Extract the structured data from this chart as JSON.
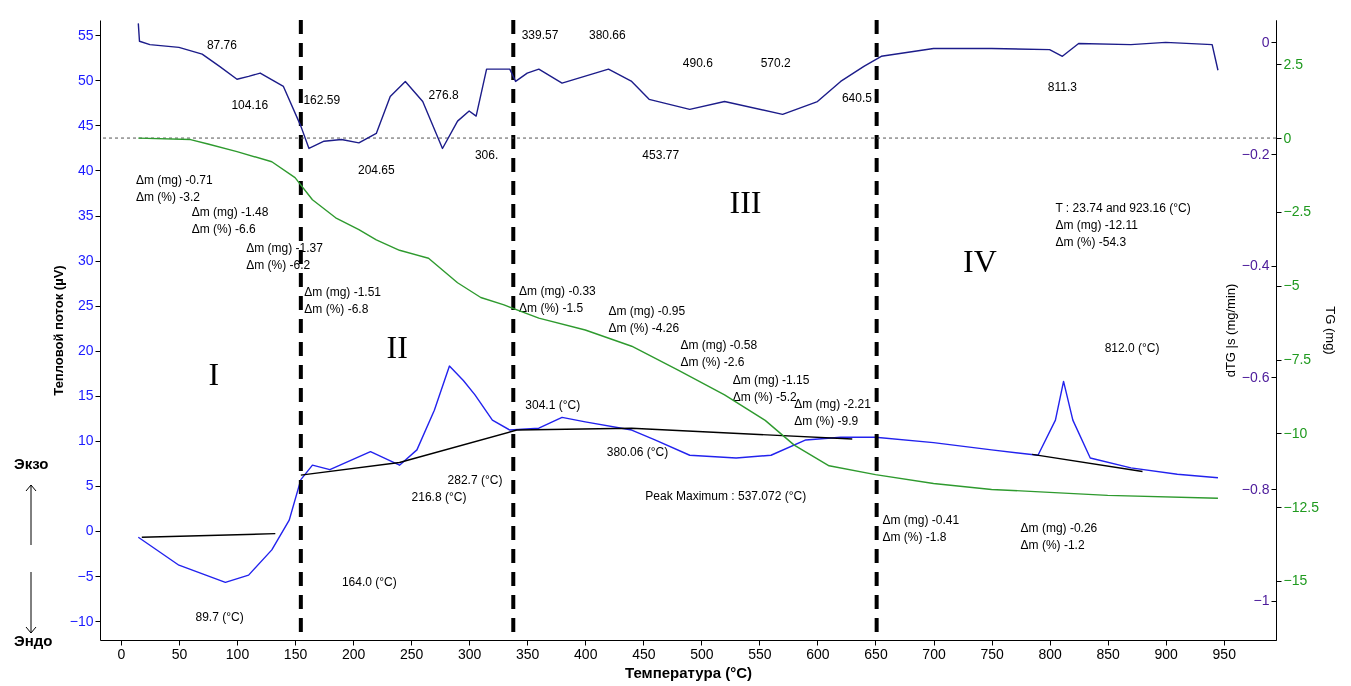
{
  "chart_data": {
    "type": "line",
    "xlabel": "Температура   (°C)",
    "ylabel": "Тепловой поток  (µV)",
    "y2label": "dTG |s (mg/min)",
    "y3label": "TG (mg)",
    "xlim": [
      -18,
      995
    ],
    "xticks": [
      0,
      50,
      100,
      150,
      200,
      250,
      300,
      350,
      400,
      450,
      500,
      550,
      600,
      650,
      700,
      750,
      800,
      850,
      900,
      950
    ],
    "ylim": [
      -12.1,
      56.7
    ],
    "yticks": [
      -10,
      -5,
      0,
      5,
      10,
      15,
      20,
      25,
      30,
      35,
      40,
      45,
      50,
      55
    ],
    "y2lim": [
      -1.07,
      0.04
    ],
    "y2ticks": [
      0,
      -0.2,
      -0.4,
      -0.6,
      -0.8,
      -1
    ],
    "y3lim": [
      -17,
      4
    ],
    "y3ticks": [
      2.5,
      0,
      -2.5,
      -5,
      -7.5,
      -10,
      -12.5,
      -15
    ],
    "series": [
      {
        "color": "#2222ee",
        "x": [
          15,
          50,
          90,
          110,
          130,
          145,
          155,
          165,
          180,
          215,
          240,
          255,
          270,
          283,
          295,
          305,
          320,
          335,
          360,
          380,
          400,
          440,
          460,
          490,
          530,
          560,
          590,
          620,
          650,
          700,
          750,
          790,
          805,
          812,
          820,
          835,
          870,
          910,
          945
        ],
        "values": [
          -0.7,
          -3.8,
          -5.7,
          -4.9,
          -2.1,
          1.2,
          5.7,
          7.3,
          6.8,
          8.8,
          7.3,
          9,
          13.4,
          18.3,
          16.7,
          15.1,
          12.3,
          11.2,
          11.4,
          12.6,
          12.1,
          11.2,
          10.1,
          8.4,
          8.1,
          8.4,
          10.1,
          10.4,
          10.4,
          9.8,
          9,
          8.4,
          12.3,
          16.6,
          12.3,
          8.1,
          7,
          6.3,
          5.9
        ]
      },
      {
        "color": "#1c1c8a",
        "axis": "y2",
        "x": [
          15,
          16,
          25,
          50,
          70,
          85,
          100,
          110,
          120,
          140,
          155,
          162,
          175,
          190,
          205,
          220,
          232,
          245,
          260,
          277,
          290,
          300,
          306,
          315,
          335,
          340,
          350,
          360,
          380,
          420,
          440,
          455,
          490,
          520,
          570,
          600,
          620,
          640,
          655,
          700,
          750,
          800,
          811,
          825,
          870,
          900,
          940,
          945
        ],
        "values": [
          0.034,
          0.002,
          -0.004,
          -0.009,
          -0.021,
          -0.043,
          -0.066,
          -0.061,
          -0.055,
          -0.079,
          -0.15,
          -0.19,
          -0.177,
          -0.174,
          -0.18,
          -0.163,
          -0.097,
          -0.07,
          -0.106,
          -0.19,
          -0.141,
          -0.123,
          -0.132,
          -0.048,
          -0.048,
          -0.07,
          -0.055,
          -0.048,
          -0.073,
          -0.048,
          -0.07,
          -0.102,
          -0.12,
          -0.106,
          -0.129,
          -0.106,
          -0.07,
          -0.043,
          -0.025,
          -0.011,
          -0.011,
          -0.013,
          -0.025,
          -0.002,
          -0.004,
          0,
          -0.004,
          -0.05
        ]
      },
      {
        "color": "#2e9a2e",
        "axis": "y3",
        "x": [
          15,
          60,
          75,
          100,
          130,
          150,
          165,
          185,
          205,
          220,
          240,
          265,
          290,
          310,
          330,
          360,
          400,
          440,
          480,
          520,
          555,
          580,
          610,
          650,
          700,
          750,
          800,
          850,
          945
        ],
        "values": [
          0,
          -0.05,
          -0.2,
          -0.46,
          -0.8,
          -1.34,
          -2.09,
          -2.7,
          -3.1,
          -3.45,
          -3.8,
          -4.07,
          -4.9,
          -5.4,
          -5.65,
          -6.1,
          -6.5,
          -7.05,
          -7.86,
          -8.7,
          -9.56,
          -10.4,
          -11.1,
          -11.4,
          -11.7,
          -11.9,
          -12,
          -12.1,
          -12.2
        ]
      },
      {
        "color": "#000000",
        "x": [
          18,
          133
        ],
        "values": [
          -0.7,
          -0.3
        ]
      },
      {
        "color": "#000000",
        "x": [
          155,
          240,
          341,
          440,
          630
        ],
        "values": [
          6.2,
          7.6,
          11.2,
          11.4,
          10.2
        ]
      },
      {
        "color": "#000000",
        "x": [
          785,
          880
        ],
        "values": [
          8.5,
          6.6
        ]
      }
    ],
    "ref_lines": [
      {
        "axis": "x",
        "value": 155,
        "color": "#000000",
        "line_style": "dashed"
      },
      {
        "axis": "x",
        "value": 338,
        "color": "#000000",
        "line_style": "dashed"
      },
      {
        "axis": "x",
        "value": 651,
        "color": "#000000",
        "line_style": "dashed"
      },
      {
        "axis": "y",
        "value": 43.6,
        "color": "#555555",
        "line_style": "dotted"
      }
    ],
    "annotations": [
      "87.76",
      "104.16",
      "162.59",
      "204.65",
      "276.8",
      "306.",
      "339.57",
      "380.66",
      "453.77",
      "490.6",
      "570.2",
      "640.5",
      "811.3",
      "Δm (mg) -0.71\nΔm (%) -3.2",
      "Δm (mg) -1.48\nΔm (%) -6.6",
      "Δm (mg) -1.37\nΔm (%) -6.2",
      "Δm (mg) -1.51\nΔm (%) -6.8",
      "Δm (mg) -0.33\nΔm (%) -1.5",
      "Δm (mg) -0.95\nΔm (%) -4.26",
      "Δm (mg) -0.58\nΔm (%) -2.6",
      "Δm (mg) -1.15\nΔm (%) -5.2",
      "Δm (mg) -2.21\nΔm (%) -9.9",
      "Δm (mg) -0.41\nΔm (%) -1.8",
      "Δm (mg) -0.26\nΔm (%) -1.2",
      "T : 23.74 and 923.16 (°C)\nΔm (mg) -12.11\nΔm (%) -54.3",
      "89.7 (°C)",
      "164.0 (°C)",
      "216.8 (°C)",
      "282.7 (°C)",
      "304.1 (°C)",
      "380.06 (°C)",
      "Peak Maximum :  537.072 (°C)",
      "812.0 (°C)",
      "I",
      "II",
      "III",
      "IV",
      "Экзо",
      "Эндо"
    ]
  }
}
